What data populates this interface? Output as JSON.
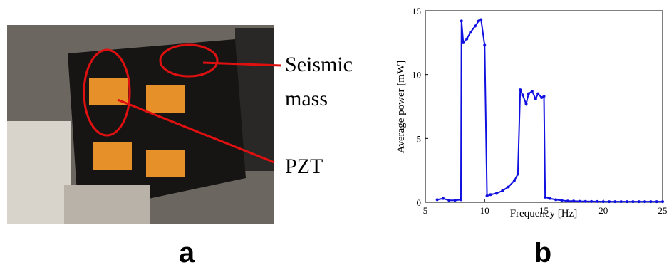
{
  "photo": {
    "annotations": [
      "Seismic",
      "mass",
      "PZT"
    ]
  },
  "panel_labels": [
    "a",
    "b"
  ],
  "chart_data": {
    "type": "line",
    "x_label": "Frequency [Hz]",
    "y_label": "Average power [mW]",
    "x": [
      6,
      6.5,
      7,
      7.5,
      8,
      8.05,
      8.2,
      8.5,
      8.8,
      9.2,
      9.5,
      9.7,
      10,
      10.2,
      10.5,
      11,
      11.5,
      12,
      12.5,
      12.8,
      13,
      13.2,
      13.5,
      13.7,
      14,
      14.3,
      14.5,
      14.8,
      15,
      15.1,
      15.5,
      16,
      16.5,
      17,
      17.5,
      18,
      18.5,
      19,
      19.5,
      20,
      20.5,
      21,
      21.5,
      22,
      22.5,
      23,
      23.5,
      24,
      24.5,
      25
    ],
    "series": [
      {
        "color": "#1010e0",
        "values": [
          0.2,
          0.3,
          0.15,
          0.15,
          0.2,
          14.2,
          12.5,
          12.8,
          13.3,
          13.8,
          14.2,
          14.3,
          12.3,
          0.5,
          0.6,
          0.7,
          0.9,
          1.2,
          1.7,
          2.2,
          8.8,
          8.4,
          7.7,
          8.5,
          8.7,
          8.1,
          8.5,
          8.2,
          8.3,
          0.4,
          0.3,
          0.2,
          0.15,
          0.1,
          0.1,
          0.08,
          0.07,
          0.06,
          0.06,
          0.05,
          0.05,
          0.05,
          0.05,
          0.05,
          0.05,
          0.05,
          0.05,
          0.05,
          0.05,
          0.05
        ]
      }
    ],
    "xlim": [
      5,
      25
    ],
    "xticks": [
      5,
      10,
      15,
      20,
      25
    ],
    "ylim": [
      0,
      15
    ],
    "yticks": [
      0,
      5,
      10,
      15
    ]
  }
}
